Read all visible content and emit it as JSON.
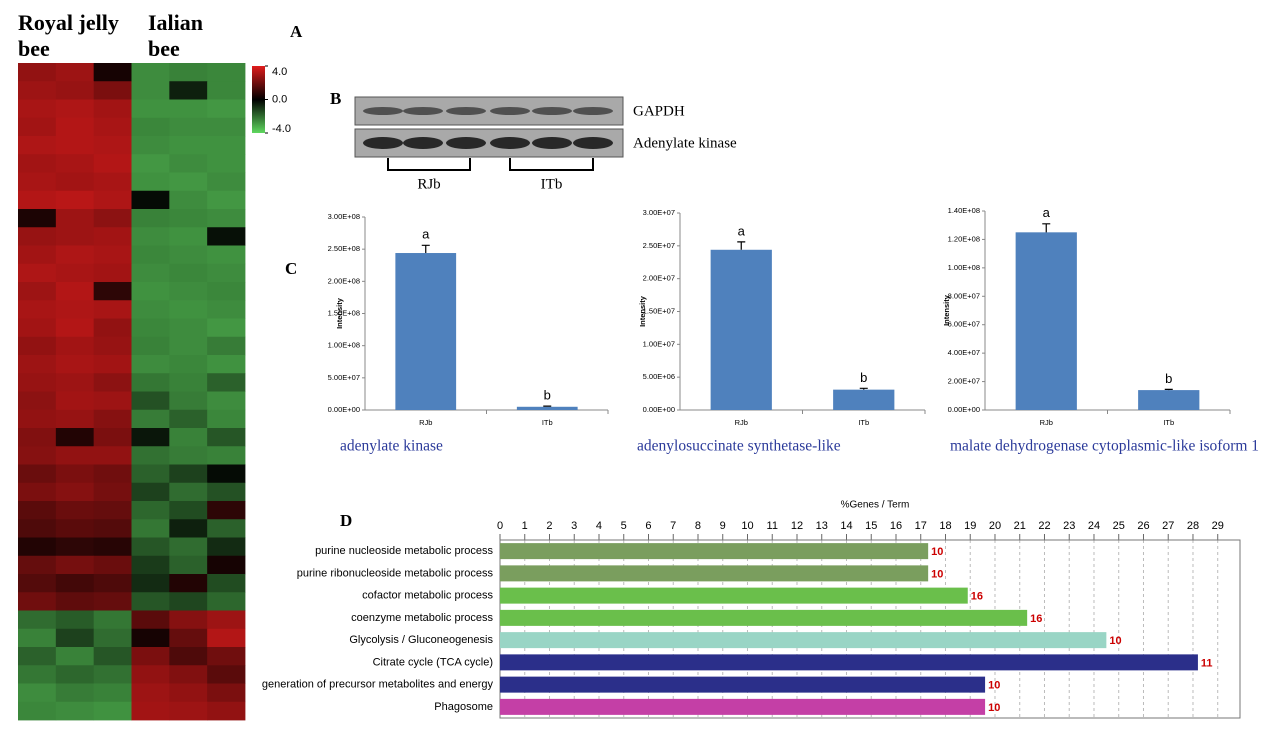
{
  "chart_data": [
    {
      "type": "heatmap",
      "panel": "A",
      "group_labels": [
        "Royal jelly bee",
        "Ialian bee"
      ],
      "zlim": [
        -4,
        4
      ],
      "colorbar_ticks": [
        {
          "value": 4,
          "label": "4.0"
        },
        {
          "value": 0,
          "label": "0.0"
        },
        {
          "value": -4,
          "label": "-4.0"
        }
      ],
      "values": [
        [
          2.6,
          2.8,
          0.4,
          -2.6,
          -2.4,
          -2.5
        ],
        [
          2.8,
          2.7,
          2.2,
          -2.6,
          -0.6,
          -2.5
        ],
        [
          3.0,
          3.1,
          2.9,
          -2.7,
          -2.7,
          -2.8
        ],
        [
          2.9,
          3.2,
          3.0,
          -2.5,
          -2.6,
          -2.6
        ],
        [
          3.1,
          3.2,
          3.1,
          -2.6,
          -2.7,
          -2.7
        ],
        [
          2.9,
          3.0,
          3.2,
          -2.8,
          -2.6,
          -2.7
        ],
        [
          3.0,
          2.9,
          3.0,
          -2.7,
          -2.8,
          -2.6
        ],
        [
          3.2,
          3.3,
          3.1,
          -0.2,
          -2.6,
          -2.8
        ],
        [
          0.5,
          2.8,
          2.5,
          -2.4,
          -2.5,
          -2.6
        ],
        [
          2.7,
          2.8,
          2.9,
          -2.6,
          -2.7,
          -0.3
        ],
        [
          2.9,
          3.1,
          3.0,
          -2.5,
          -2.6,
          -2.7
        ],
        [
          3.1,
          3.0,
          2.9,
          -2.6,
          -2.5,
          -2.6
        ],
        [
          2.8,
          3.2,
          0.8,
          -2.7,
          -2.6,
          -2.5
        ],
        [
          3.0,
          3.1,
          3.0,
          -2.6,
          -2.7,
          -2.6
        ],
        [
          2.9,
          3.2,
          2.6,
          -2.5,
          -2.6,
          -2.8
        ],
        [
          2.6,
          2.9,
          2.7,
          -2.4,
          -2.6,
          -2.3
        ],
        [
          2.8,
          3.0,
          2.9,
          -2.6,
          -2.5,
          -2.7
        ],
        [
          2.7,
          2.8,
          2.5,
          -2.2,
          -2.4,
          -1.8
        ],
        [
          2.5,
          2.9,
          2.8,
          -1.5,
          -2.3,
          -2.6
        ],
        [
          2.6,
          2.7,
          2.4,
          -2.3,
          -1.8,
          -2.5
        ],
        [
          2.3,
          0.6,
          2.2,
          -0.4,
          -2.4,
          -1.6
        ],
        [
          2.4,
          2.6,
          2.6,
          -2.1,
          -2.3,
          -2.4
        ],
        [
          1.9,
          2.2,
          2.0,
          -1.8,
          -1.2,
          -0.2
        ],
        [
          2.2,
          2.4,
          2.1,
          -1.2,
          -2.0,
          -1.5
        ],
        [
          1.6,
          1.9,
          1.8,
          -1.9,
          -1.4,
          0.8
        ],
        [
          1.4,
          1.6,
          1.5,
          -2.2,
          -0.6,
          -1.8
        ],
        [
          0.6,
          0.8,
          0.7,
          -1.6,
          -2.0,
          -0.8
        ],
        [
          1.8,
          2.1,
          1.9,
          -1.1,
          -1.8,
          0.4
        ],
        [
          1.5,
          1.2,
          1.4,
          -0.8,
          0.6,
          -1.4
        ],
        [
          2.0,
          1.7,
          1.8,
          -1.6,
          -1.3,
          -1.9
        ],
        [
          -2.0,
          -1.7,
          -2.2,
          1.6,
          2.4,
          2.8
        ],
        [
          -2.4,
          -1.2,
          -2.0,
          0.4,
          1.8,
          3.2
        ],
        [
          -1.8,
          -2.4,
          -1.6,
          2.2,
          1.4,
          2.0
        ],
        [
          -2.2,
          -1.9,
          -2.1,
          2.6,
          2.3,
          1.6
        ],
        [
          -2.6,
          -2.3,
          -2.4,
          2.8,
          2.6,
          2.2
        ],
        [
          -2.5,
          -2.6,
          -2.7,
          2.9,
          2.8,
          2.6
        ]
      ]
    },
    {
      "type": "blot",
      "panel": "B",
      "rows": [
        "GAPDH",
        "Adenylate kinase"
      ],
      "groups": [
        "RJb",
        "ITb"
      ]
    },
    {
      "type": "bar",
      "panel": "C",
      "title": "adenylate kinase",
      "y_label": "Intensity",
      "color": "#4f81bd",
      "categories": [
        "RJb",
        "ITb"
      ],
      "values": [
        244000000,
        5000000
      ],
      "errors": [
        12000000,
        1000000
      ],
      "annotations": [
        "a",
        "b"
      ],
      "ylim": [
        0,
        300000000
      ],
      "yticks": [
        {
          "value": 0,
          "label": "0.00E+00"
        },
        {
          "value": 50000000,
          "label": "5.00E+07"
        },
        {
          "value": 100000000,
          "label": "1.00E+08"
        },
        {
          "value": 150000000,
          "label": "1.50E+08"
        },
        {
          "value": 200000000,
          "label": "2.00E+08"
        },
        {
          "value": 250000000,
          "label": "2.50E+08"
        },
        {
          "value": 300000000,
          "label": "3.00E+08"
        }
      ]
    },
    {
      "type": "bar",
      "title": "adenylosuccinate synthetase-like",
      "y_label": "Intensity",
      "color": "#4f81bd",
      "categories": [
        "RJb",
        "ITb"
      ],
      "values": [
        24400000,
        3100000
      ],
      "errors": [
        1200000,
        200000
      ],
      "annotations": [
        "a",
        "b"
      ],
      "ylim": [
        0,
        30000000
      ],
      "yticks": [
        {
          "value": 0,
          "label": "0.00E+00"
        },
        {
          "value": 5000000,
          "label": "5.00E+06"
        },
        {
          "value": 10000000,
          "label": "1.00E+07"
        },
        {
          "value": 15000000,
          "label": "1.50E+07"
        },
        {
          "value": 20000000,
          "label": "2.00E+07"
        },
        {
          "value": 25000000,
          "label": "2.50E+07"
        },
        {
          "value": 30000000,
          "label": "3.00E+07"
        }
      ]
    },
    {
      "type": "bar",
      "title": "malate dehydrogenase  cytoplasmic-like isoform 1",
      "y_label": "Intensity",
      "color": "#4f81bd",
      "categories": [
        "RJb",
        "ITb"
      ],
      "values": [
        125000000,
        14000000
      ],
      "errors": [
        6000000,
        500000
      ],
      "annotations": [
        "a",
        "b"
      ],
      "ylim": [
        0,
        140000000
      ],
      "yticks": [
        {
          "value": 0,
          "label": "0.00E+00"
        },
        {
          "value": 20000000,
          "label": "2.00E+07"
        },
        {
          "value": 40000000,
          "label": "4.00E+07"
        },
        {
          "value": 60000000,
          "label": "6.00E+07"
        },
        {
          "value": 80000000,
          "label": "8.00E+07"
        },
        {
          "value": 100000000,
          "label": "1.00E+08"
        },
        {
          "value": 120000000,
          "label": "1.20E+08"
        },
        {
          "value": 140000000,
          "label": "1.40E+08"
        }
      ]
    },
    {
      "type": "hbar",
      "panel": "D",
      "title": "%Genes / Term",
      "categories": [
        "purine nucleoside metabolic process",
        "purine ribonucleoside metabolic process",
        "cofactor metabolic process",
        "coenzyme metabolic process",
        "Glycolysis / Gluconeogenesis",
        "Citrate cycle (TCA cycle)",
        "generation of precursor metabolites and energy",
        "Phagosome"
      ],
      "values": [
        17.3,
        17.3,
        18.9,
        21.3,
        24.5,
        28.2,
        19.6,
        19.6
      ],
      "counts": [
        10,
        10,
        16,
        16,
        10,
        11,
        10,
        10
      ],
      "colors": [
        "#7a9e5e",
        "#7a9e5e",
        "#6abf4b",
        "#6abf4b",
        "#99d5c5",
        "#2b2f8a",
        "#2b2f8a",
        "#c43fa6"
      ],
      "count_color": "#cc0000",
      "xlim": [
        0,
        29.9
      ],
      "xticks": [
        0,
        1,
        2,
        3,
        4,
        5,
        6,
        7,
        8,
        9,
        10,
        11,
        12,
        13,
        14,
        15,
        16,
        17,
        18,
        19,
        20,
        21,
        22,
        23,
        24,
        25,
        26,
        27,
        28,
        29
      ],
      "grid": true
    }
  ]
}
